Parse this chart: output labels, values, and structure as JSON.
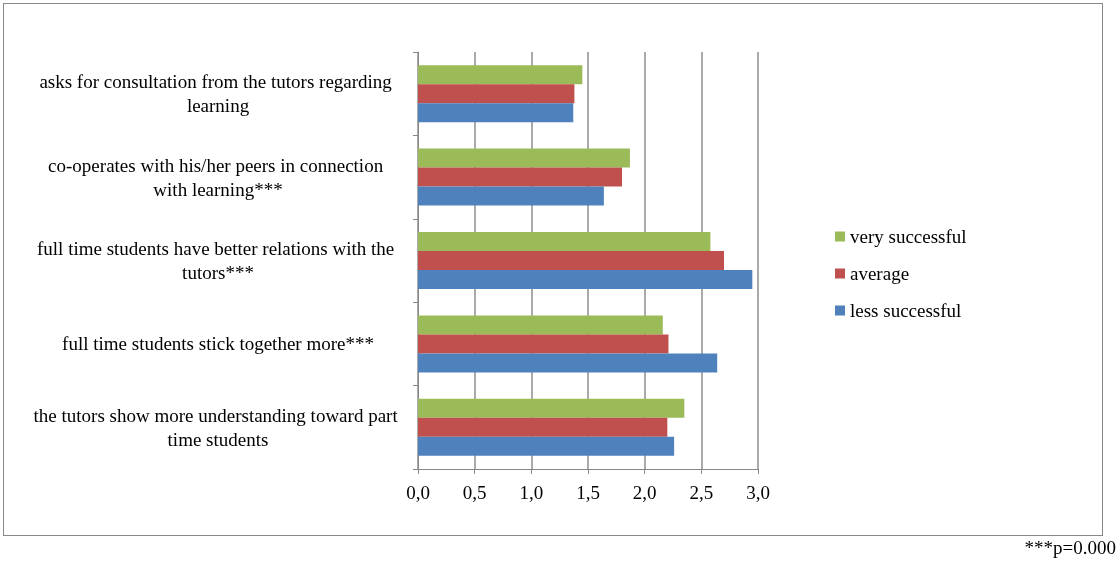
{
  "chart_data": {
    "type": "bar",
    "orientation": "horizontal",
    "categories": [
      "asks for consultation from the tutors regarding learning",
      "co-operates with his/her peers in connection with learning***",
      "full time students have better relations with the tutors***",
      "full time students stick together more***",
      "the tutors show more understanding toward part time students"
    ],
    "series": [
      {
        "name": "very successful",
        "color": "#9bbb59",
        "values": [
          1.45,
          1.87,
          2.58,
          2.16,
          2.35
        ]
      },
      {
        "name": "average",
        "color": "#c0504d",
        "values": [
          1.38,
          1.8,
          2.7,
          2.21,
          2.2
        ]
      },
      {
        "name": "less successful",
        "color": "#4f81bd",
        "values": [
          1.37,
          1.64,
          2.95,
          2.64,
          2.26
        ]
      }
    ],
    "xlim": [
      0,
      3
    ],
    "xticks": [
      {
        "value": 0,
        "label": "0,0"
      },
      {
        "value": 0.5,
        "label": "0,5"
      },
      {
        "value": 1,
        "label": "1,0"
      },
      {
        "value": 1.5,
        "label": "1,5"
      },
      {
        "value": 2,
        "label": "2,0"
      },
      {
        "value": 2.5,
        "label": "2,5"
      },
      {
        "value": 3,
        "label": "3,0"
      }
    ],
    "grid": "x",
    "legend": "right",
    "annotations": [
      "***p=0.000"
    ]
  }
}
